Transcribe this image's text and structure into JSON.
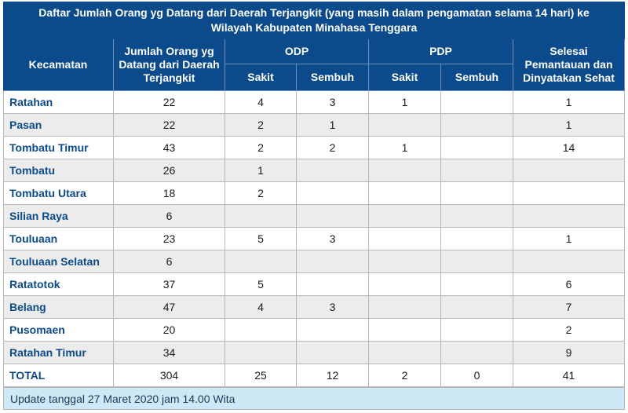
{
  "title": "Daftar Jumlah Orang yg Datang dari Daerah Terjangkit (yang masih dalam pengamatan selama 14 hari) ke Wilayah Kabupaten Minahasa Tenggara",
  "header": {
    "kecamatan": "Kecamatan",
    "jumlah": "Jumlah Orang yg Datang dari Daerah Terjangkit",
    "odp": "ODP",
    "pdp": "PDP",
    "selesai": "Selesai Pemantauan dan Dinyatakan Sehat",
    "subs": [
      "Sakit",
      "Sembuh",
      "Sakit",
      "Sembuh"
    ]
  },
  "table": {
    "rows": [
      [
        "Ratahan",
        22,
        4,
        3,
        1,
        null,
        1
      ],
      [
        "Pasan",
        22,
        2,
        1,
        null,
        null,
        1
      ],
      [
        "Tombatu Timur",
        43,
        2,
        2,
        1,
        null,
        14
      ],
      [
        "Tombatu",
        26,
        1,
        null,
        null,
        null,
        null
      ],
      [
        "Tombatu Utara",
        18,
        2,
        null,
        null,
        null,
        null
      ],
      [
        "Silian Raya",
        6,
        null,
        null,
        null,
        null,
        null
      ],
      [
        "Touluaan",
        23,
        5,
        3,
        null,
        null,
        1
      ],
      [
        "Touluaan Selatan",
        6,
        null,
        null,
        null,
        null,
        null
      ],
      [
        "Ratatotok",
        37,
        5,
        null,
        null,
        null,
        6
      ],
      [
        "Belang",
        47,
        4,
        3,
        null,
        null,
        7
      ],
      [
        "Pusomaen",
        20,
        null,
        null,
        null,
        null,
        2
      ],
      [
        "Ratahan Timur",
        34,
        null,
        null,
        null,
        null,
        9
      ],
      [
        "TOTAL",
        304,
        25,
        12,
        2,
        0,
        41
      ]
    ]
  },
  "footer": "Update tanggal 27 Maret 2020 jam 14.00 Wita"
}
